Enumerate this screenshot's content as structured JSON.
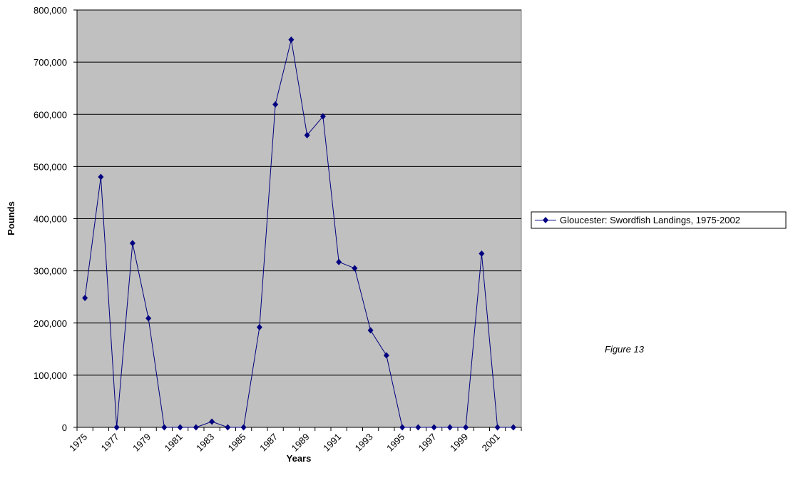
{
  "chart_data": {
    "type": "line",
    "title": "",
    "xlabel": "Years",
    "ylabel": "Pounds",
    "ylim": [
      0,
      800000
    ],
    "yticks": [
      0,
      100000,
      200000,
      300000,
      400000,
      500000,
      600000,
      700000,
      800000
    ],
    "ytick_labels": [
      "0",
      "100,000",
      "200,000",
      "300,000",
      "400,000",
      "500,000",
      "600,000",
      "700,000",
      "800,000"
    ],
    "x_tick_labels": [
      "1975",
      "1977",
      "1979",
      "1981",
      "1983",
      "1985",
      "1987",
      "1989",
      "1991",
      "1993",
      "1995",
      "1997",
      "1999",
      "2001"
    ],
    "x": [
      1975,
      1976,
      1977,
      1978,
      1979,
      1980,
      1981,
      1982,
      1983,
      1984,
      1985,
      1986,
      1987,
      1988,
      1989,
      1990,
      1991,
      1992,
      1993,
      1994,
      1995,
      1996,
      1997,
      1998,
      1999,
      2000,
      2001,
      2002
    ],
    "series": [
      {
        "name": "Gloucester: Swordfish Landings, 1975-2002",
        "values": [
          248000,
          480000,
          0,
          353000,
          209000,
          0,
          0,
          0,
          11000,
          0,
          0,
          192000,
          619000,
          743000,
          560000,
          596000,
          317000,
          305000,
          186000,
          138000,
          0,
          0,
          0,
          0,
          0,
          333000,
          0,
          0
        ]
      }
    ],
    "grid": true,
    "legend_position": "right",
    "colors": {
      "series": "#000080",
      "plot_bg": "#c0c0c0",
      "grid": "#000000"
    }
  },
  "annotation": "Figure 13"
}
